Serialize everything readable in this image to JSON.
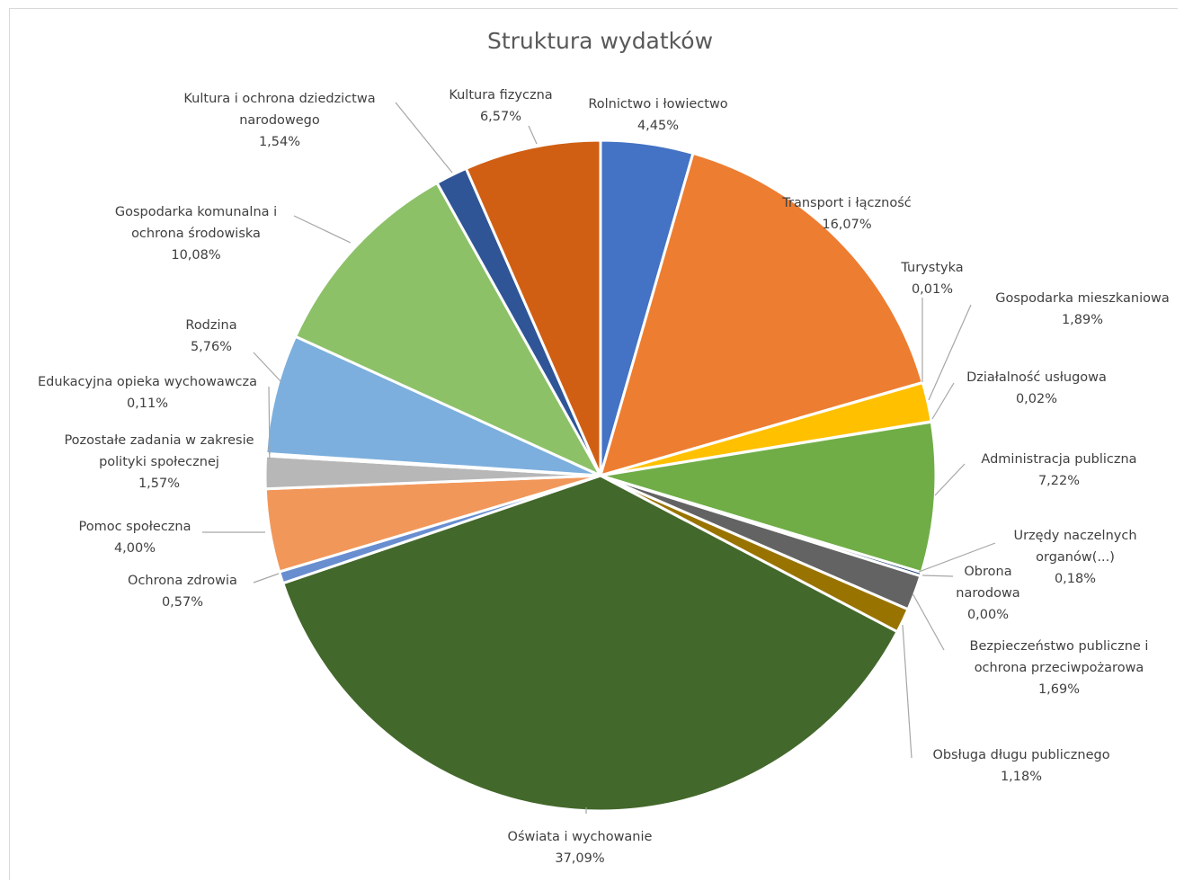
{
  "chart_data": {
    "type": "pie",
    "title": "Struktura wydatków",
    "slices": [
      {
        "name": "Rolnictwo i łowiectwo",
        "label_lines": [
          "Rolnictwo i łowiectwo"
        ],
        "value": 4.45,
        "label": "4,45%",
        "color": "#4472c4"
      },
      {
        "name": "Transport i łączność",
        "label_lines": [
          "Transport i łączność"
        ],
        "value": 16.07,
        "label": "16,07%",
        "color": "#ed7d31"
      },
      {
        "name": "Turystyka",
        "label_lines": [
          "Turystyka"
        ],
        "value": 0.01,
        "label": "0,01%",
        "color": "#a5a5a5"
      },
      {
        "name": "Gospodarka mieszkaniowa",
        "label_lines": [
          "Gospodarka mieszkaniowa"
        ],
        "value": 1.89,
        "label": "1,89%",
        "color": "#ffc000"
      },
      {
        "name": "Działalność usługowa",
        "label_lines": [
          "Działalność usługowa"
        ],
        "value": 0.02,
        "label": "0,02%",
        "color": "#5b9bd5"
      },
      {
        "name": "Administracja publiczna",
        "label_lines": [
          "Administracja publiczna"
        ],
        "value": 7.22,
        "label": "7,22%",
        "color": "#70ad47"
      },
      {
        "name": "Urzędy naczelnych organów(...)",
        "label_lines": [
          "Urzędy naczelnych",
          "organów(...)"
        ],
        "value": 0.18,
        "label": "0,18%",
        "color": "#264478"
      },
      {
        "name": "Obrona narodowa",
        "label_lines": [
          "Obrona",
          "narodowa"
        ],
        "value": 0.0,
        "label": "0,00%",
        "color": "#9e480e"
      },
      {
        "name": "Bezpieczeństwo publiczne i ochrona przeciwpożarowa",
        "label_lines": [
          "Bezpieczeństwo publiczne i",
          "ochrona przeciwpożarowa"
        ],
        "value": 1.69,
        "label": "1,69%",
        "color": "#636363"
      },
      {
        "name": "Obsługa długu publicznego",
        "label_lines": [
          "Obsługa długu publicznego"
        ],
        "value": 1.18,
        "label": "1,18%",
        "color": "#997300"
      },
      {
        "name": "Oświata i wychowanie",
        "label_lines": [
          "Oświata i wychowanie"
        ],
        "value": 37.09,
        "label": "37,09%",
        "color": "#43682b"
      },
      {
        "name": "Ochrona zdrowia",
        "label_lines": [
          "Ochrona zdrowia"
        ],
        "value": 0.57,
        "label": "0,57%",
        "color": "#698ed0"
      },
      {
        "name": "Pomoc społeczna",
        "label_lines": [
          "Pomoc społeczna"
        ],
        "value": 4.0,
        "label": "4,00%",
        "color": "#f1975a"
      },
      {
        "name": "Pozostałe zadania w zakresie polityki społecznej",
        "label_lines": [
          "Pozostałe zadania w zakresie",
          "polityki społecznej"
        ],
        "value": 1.57,
        "label": "1,57%",
        "color": "#b7b7b7"
      },
      {
        "name": "Edukacyjna opieka wychowawcza",
        "label_lines": [
          "Edukacyjna opieka wychowawcza"
        ],
        "value": 0.11,
        "label": "0,11%",
        "color": "#ffcd33"
      },
      {
        "name": "Rodzina",
        "label_lines": [
          "Rodzina"
        ],
        "value": 5.76,
        "label": "5,76%",
        "color": "#7cafdd"
      },
      {
        "name": "Gospodarka komunalna i ochrona środowiska",
        "label_lines": [
          "Gospodarka komunalna i",
          "ochrona środowiska"
        ],
        "value": 10.08,
        "label": "10,08%",
        "color": "#8cc168"
      },
      {
        "name": "Kultura i ochrona dziedzictwa narodowego",
        "label_lines": [
          "Kultura i ochrona dziedzictwa",
          "narodowego"
        ],
        "value": 1.54,
        "label": "1,54%",
        "color": "#2f5597"
      },
      {
        "name": "Kultura fizyczna",
        "label_lines": [
          "Kultura fizyczna"
        ],
        "value": 6.57,
        "label": "6,57%",
        "color": "#d05f14"
      }
    ],
    "legend": "none",
    "data_labels": "outside-with-leader-lines"
  }
}
